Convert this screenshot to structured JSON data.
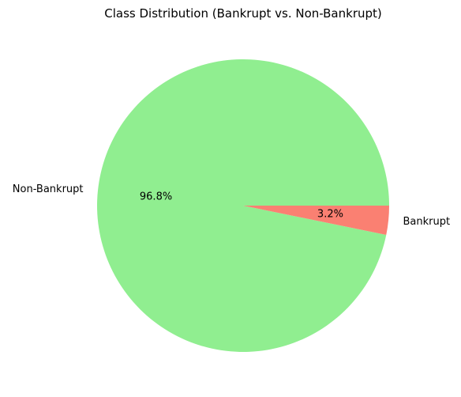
{
  "chart_data": {
    "type": "pie",
    "title": "Class Distribution (Bankrupt vs. Non-Bankrupt)",
    "slices": [
      {
        "label": "Non-Bankrupt",
        "value": 96.8,
        "pct_label": "96.8%",
        "color": "#90ee90"
      },
      {
        "label": "Bankrupt",
        "value": 3.2,
        "pct_label": "3.2%",
        "color": "#fa8072"
      }
    ],
    "start_angle_deg": 0,
    "direction": "counterclockwise",
    "legend": "none"
  }
}
